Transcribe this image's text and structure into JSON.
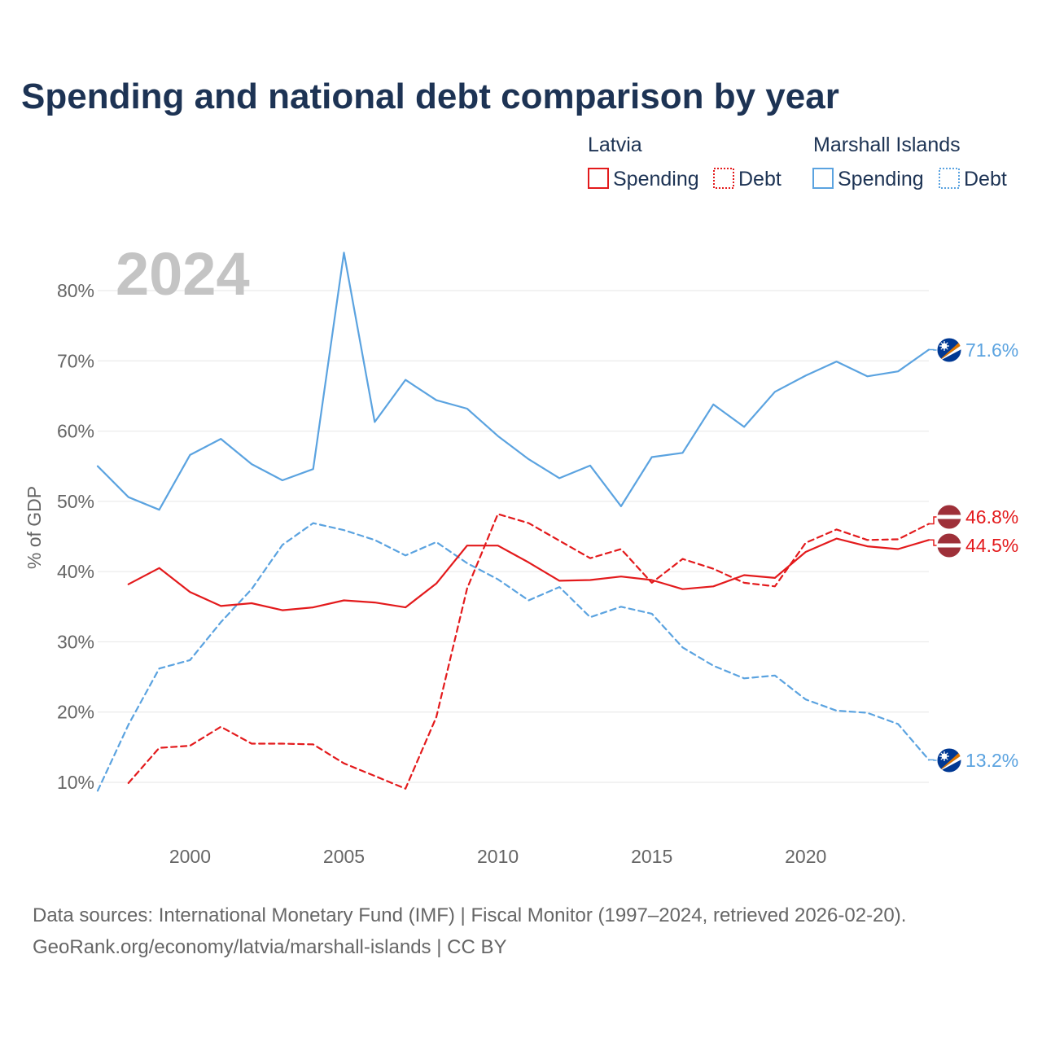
{
  "title": "Spending and national debt comparison by year",
  "legend": {
    "groups": [
      {
        "name": "Latvia",
        "color": "#e31a1c",
        "items": [
          {
            "label": "Spending",
            "style": "solid"
          },
          {
            "label": "Debt",
            "style": "dotted"
          }
        ]
      },
      {
        "name": "Marshall Islands",
        "color": "#5ba3e0",
        "items": [
          {
            "label": "Spending",
            "style": "solid"
          },
          {
            "label": "Debt",
            "style": "dotted"
          }
        ]
      }
    ]
  },
  "year_label": "2024",
  "end_labels": [
    {
      "text": "71.6%",
      "series": "Marshall Islands Spending",
      "flag": "marshall-islands-flag-icon"
    },
    {
      "text": "46.8%",
      "series": "Latvia Debt",
      "flag": "latvia-flag-icon"
    },
    {
      "text": "44.5%",
      "series": "Latvia Spending",
      "flag": "latvia-flag-icon"
    },
    {
      "text": "13.2%",
      "series": "Marshall Islands Debt",
      "flag": "marshall-islands-flag-icon"
    }
  ],
  "source": {
    "line1": "Data sources: International Monetary Fund (IMF) | Fiscal Monitor (1997–2024, retrieved 2026-02-20).",
    "line2": "GeoRank.org/economy/latvia/marshall-islands | CC BY"
  },
  "chart_data": {
    "type": "line",
    "title": "Spending and national debt comparison by year",
    "xlabel": "",
    "ylabel": "% of GDP",
    "xlim": [
      1997,
      2024
    ],
    "ylim": [
      5,
      87
    ],
    "x_ticks": [
      2000,
      2005,
      2010,
      2015,
      2020
    ],
    "y_ticks": [
      10,
      20,
      30,
      40,
      50,
      60,
      70,
      80
    ],
    "y_tick_labels": [
      "10%",
      "20%",
      "30%",
      "40%",
      "50%",
      "60%",
      "70%",
      "80%"
    ],
    "grid": true,
    "series": [
      {
        "name": "Marshall Islands Spending",
        "country": "Marshall Islands",
        "metric": "Spending",
        "color": "#5ba3e0",
        "dash": "solid",
        "x": [
          1997,
          1998,
          1999,
          2000,
          2001,
          2002,
          2003,
          2004,
          2005,
          2006,
          2007,
          2008,
          2009,
          2010,
          2011,
          2012,
          2013,
          2014,
          2015,
          2016,
          2017,
          2018,
          2019,
          2020,
          2021,
          2022,
          2023,
          2024
        ],
        "y": [
          55.0,
          50.6,
          48.8,
          56.6,
          58.9,
          55.3,
          53.0,
          54.6,
          85.4,
          61.3,
          67.3,
          64.4,
          63.2,
          59.3,
          56.0,
          53.3,
          55.1,
          49.3,
          56.3,
          56.9,
          63.8,
          60.6,
          65.6,
          67.9,
          69.9,
          67.8,
          68.5,
          71.6
        ]
      },
      {
        "name": "Marshall Islands Debt",
        "country": "Marshall Islands",
        "metric": "Debt",
        "color": "#5ba3e0",
        "dash": "dashed",
        "x": [
          1997,
          1998,
          1999,
          2000,
          2001,
          2002,
          2003,
          2004,
          2005,
          2006,
          2007,
          2008,
          2009,
          2010,
          2011,
          2012,
          2013,
          2014,
          2015,
          2016,
          2017,
          2018,
          2019,
          2020,
          2021,
          2022,
          2023,
          2024
        ],
        "y": [
          8.8,
          18.2,
          26.2,
          27.4,
          32.8,
          37.5,
          43.8,
          46.9,
          45.9,
          44.5,
          42.3,
          44.2,
          41.2,
          38.9,
          35.9,
          37.8,
          33.5,
          35.0,
          34.0,
          29.2,
          26.6,
          24.8,
          25.2,
          21.8,
          20.2,
          19.9,
          18.3,
          13.2
        ]
      },
      {
        "name": "Latvia Spending",
        "country": "Latvia",
        "metric": "Spending",
        "color": "#e31a1c",
        "dash": "solid",
        "x": [
          1998,
          1999,
          2000,
          2001,
          2002,
          2003,
          2004,
          2005,
          2006,
          2007,
          2008,
          2009,
          2010,
          2011,
          2012,
          2013,
          2014,
          2015,
          2016,
          2017,
          2018,
          2019,
          2020,
          2021,
          2022,
          2023,
          2024
        ],
        "y": [
          38.2,
          40.5,
          37.1,
          35.1,
          35.5,
          34.5,
          34.9,
          35.9,
          35.6,
          34.9,
          38.3,
          43.7,
          43.7,
          41.3,
          38.7,
          38.8,
          39.3,
          38.8,
          37.5,
          37.9,
          39.5,
          39.1,
          42.8,
          44.7,
          43.6,
          43.2,
          44.5
        ]
      },
      {
        "name": "Latvia Debt",
        "country": "Latvia",
        "metric": "Debt",
        "color": "#e31a1c",
        "dash": "dashed",
        "x": [
          1998,
          1999,
          2000,
          2001,
          2002,
          2003,
          2004,
          2005,
          2006,
          2007,
          2008,
          2009,
          2010,
          2011,
          2012,
          2013,
          2014,
          2015,
          2016,
          2017,
          2018,
          2019,
          2020,
          2021,
          2022,
          2023,
          2024
        ],
        "y": [
          9.9,
          14.9,
          15.2,
          17.9,
          15.5,
          15.5,
          15.4,
          12.7,
          10.9,
          9.1,
          19.3,
          37.6,
          48.2,
          46.9,
          44.4,
          41.9,
          43.2,
          38.4,
          41.8,
          40.4,
          38.4,
          37.9,
          44.1,
          46.0,
          44.5,
          44.6,
          46.8
        ]
      }
    ]
  }
}
